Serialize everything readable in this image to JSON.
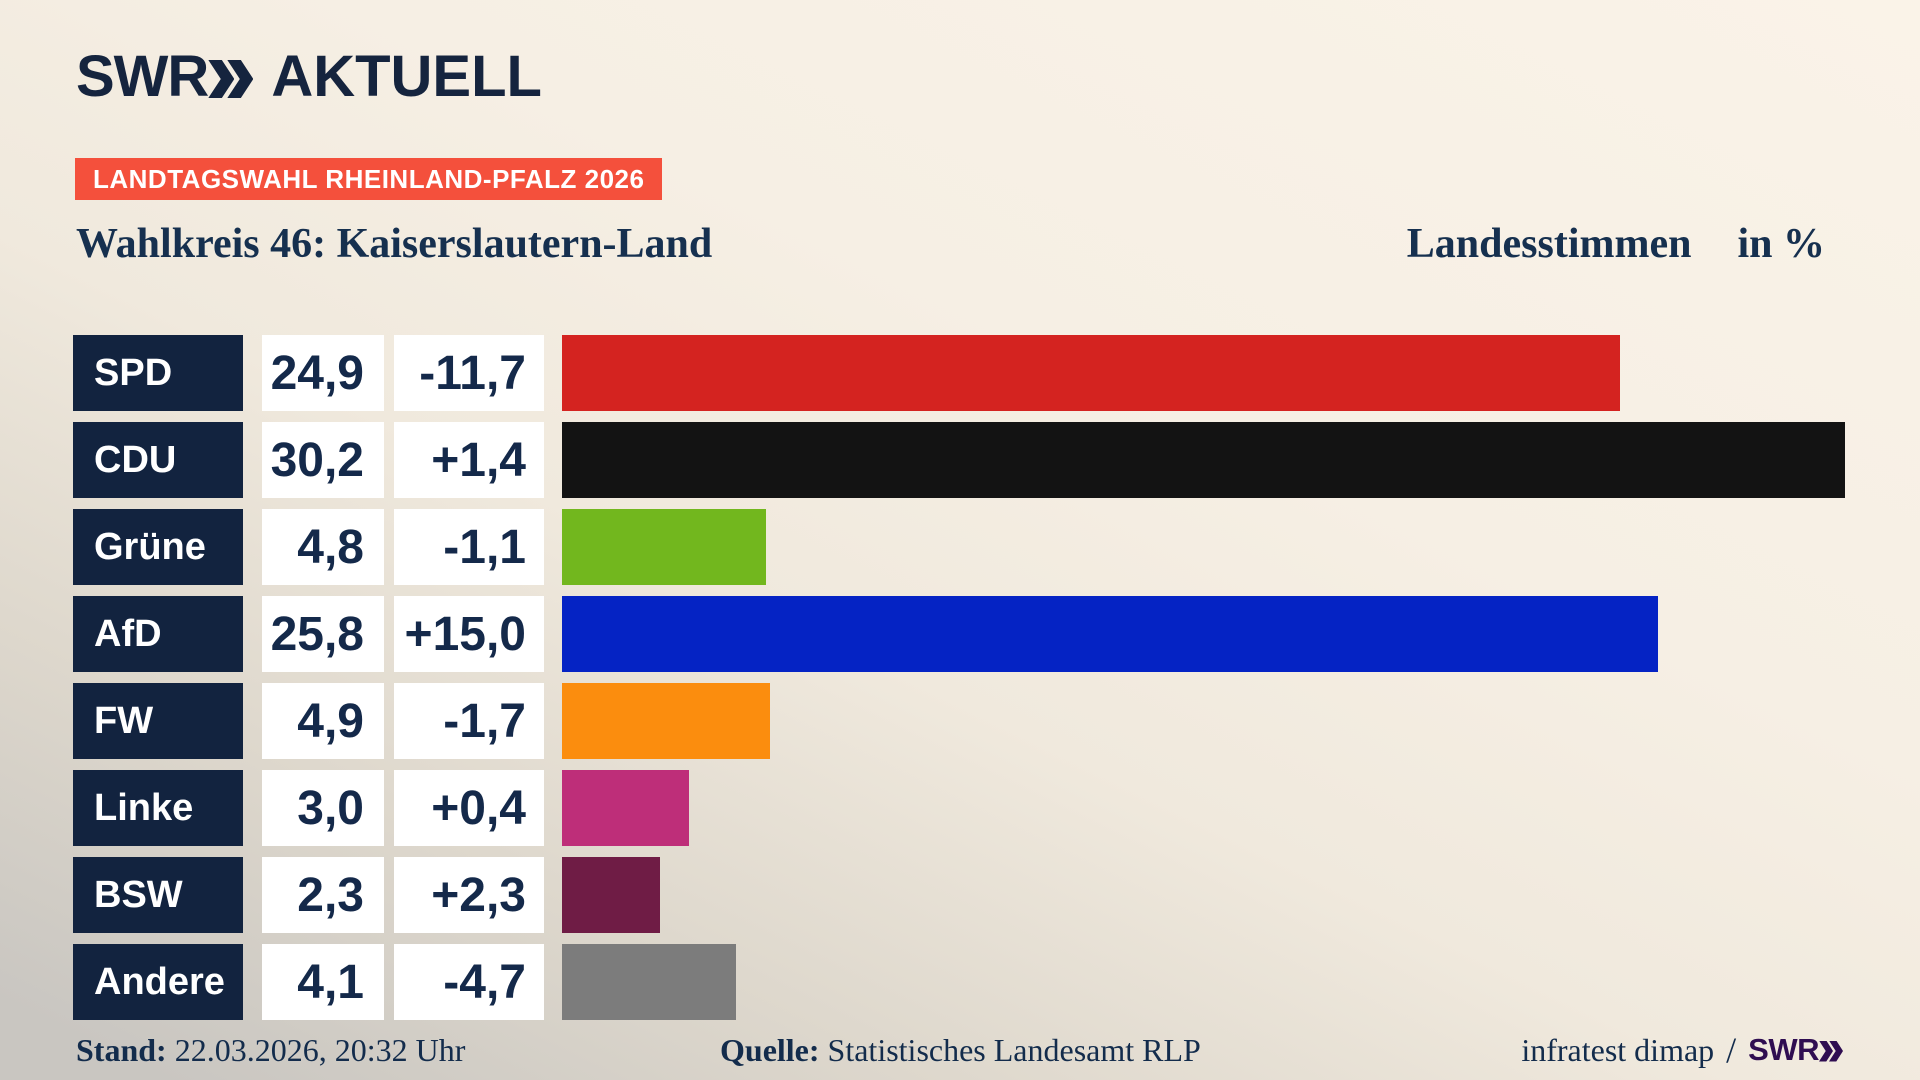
{
  "header": {
    "logo": {
      "brand": "SWR",
      "chevrons_icon": "double-chevron-right",
      "suffix": "AKTUELL"
    },
    "badge": {
      "label": "LANDTAGSWAHL RHEINLAND-PFALZ 2026",
      "color": "#f4503c"
    },
    "title": "Wahlkreis 46: Kaiserslautern-Land",
    "right_label": "Landesstimmen",
    "unit_label": "in %"
  },
  "chart_data": {
    "type": "bar",
    "orientation": "horizontal",
    "unit": "%",
    "xmax": 30.2,
    "grid": false,
    "categories": [
      "SPD",
      "CDU",
      "Grüne",
      "AfD",
      "FW",
      "Linke",
      "BSW",
      "Andere"
    ],
    "values": [
      24.9,
      30.2,
      4.8,
      25.8,
      4.9,
      3.0,
      2.3,
      4.1
    ],
    "value_labels": [
      "24,9",
      "30,2",
      "4,8",
      "25,8",
      "4,9",
      "3,0",
      "2,3",
      "4,1"
    ],
    "changes": [
      "-11,7",
      "+1,4",
      "-1,1",
      "+15,0",
      "-1,7",
      "+0,4",
      "+2,3",
      "-4,7"
    ],
    "bar_colors": [
      "#d42320",
      "#131313",
      "#72b71e",
      "#0523c4",
      "#fb8d0e",
      "#be2e79",
      "#6f1c45",
      "#7c7c7c"
    ],
    "label_box_color": "#12233f",
    "value_box_color": "#ffffff"
  },
  "footer": {
    "stand_label": "Stand:",
    "stand_value": "22.03.2026, 20:32 Uhr",
    "quelle_label": "Quelle:",
    "quelle_value": "Statistisches Landesamt RLP",
    "credit": "infratest dimap",
    "credit_separator": "/",
    "credit_brand": "SWR",
    "credit_chevrons_icon": "double-chevron-right"
  }
}
